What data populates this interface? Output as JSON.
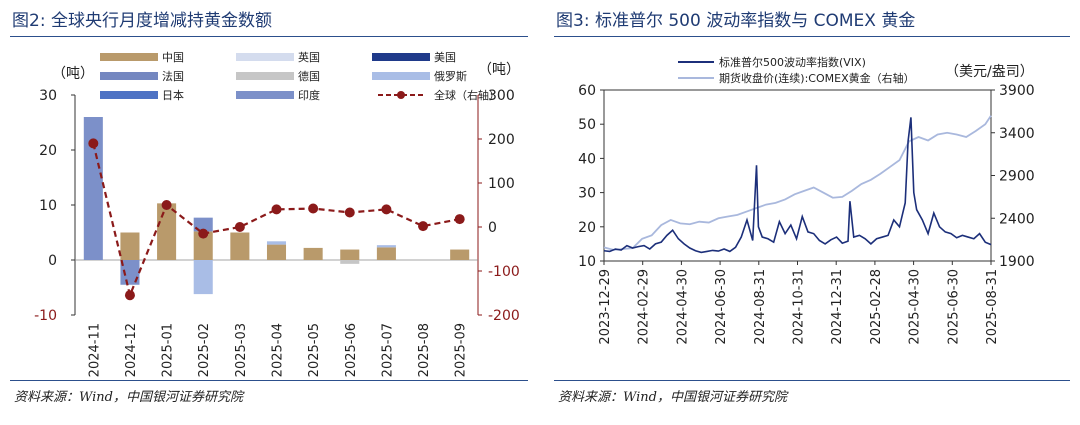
{
  "figures": [
    {
      "title": "图2: 全球央行月度增减持黄金数额",
      "source": "资料来源：Wind，中国银河证券研究院"
    },
    {
      "title": "图3: 标准普尔 500 波动率指数与 COMEX 黄金",
      "source": "资料来源：Wind，中国银河证券研究院"
    }
  ],
  "chart_data": [
    {
      "type": "bar",
      "title": "全球央行月度增减持黄金数额",
      "ylabel": "（吨）",
      "y2label": "（吨）",
      "ylim": [
        -10,
        30
      ],
      "y2lim": [
        -200,
        300
      ],
      "yticks": [
        "30",
        "20",
        "10",
        "0",
        "-10"
      ],
      "y2ticks": [
        "300",
        "200",
        "100",
        "0",
        "-100",
        "-200"
      ],
      "categories": [
        "2024-11",
        "2024-12",
        "2025-01",
        "2025-02",
        "2025-03",
        "2025-04",
        "2025-05",
        "2025-06",
        "2025-07",
        "2025-08",
        "2025-09"
      ],
      "series": [
        {
          "name": "中国",
          "color": "#b99a6b",
          "values": [
            0,
            5,
            10.3,
            5.2,
            5.0,
            2.8,
            2.2,
            1.9,
            2.3,
            0,
            1.9
          ]
        },
        {
          "name": "英国",
          "color": "#d4dcee",
          "values": [
            0,
            0,
            0,
            0,
            0,
            0,
            0,
            0,
            0,
            0,
            0
          ]
        },
        {
          "name": "美国",
          "color": "#1f3a8a",
          "values": [
            0,
            0,
            0,
            0,
            0,
            0,
            0,
            0,
            0,
            0,
            0
          ]
        },
        {
          "name": "法国",
          "color": "#7487c0",
          "values": [
            0,
            0,
            0,
            0,
            0,
            0,
            0,
            0,
            0,
            0,
            0
          ]
        },
        {
          "name": "德国",
          "color": "#c6c6c6",
          "values": [
            0,
            0,
            0,
            0,
            0,
            0,
            0,
            -0.7,
            0,
            0,
            0
          ]
        },
        {
          "name": "俄罗斯",
          "color": "#a9bde6",
          "values": [
            0,
            0,
            0,
            -6.2,
            0,
            0.6,
            0,
            0,
            0.4,
            0,
            0
          ]
        },
        {
          "name": "日本",
          "color": "#4d72c4",
          "values": [
            0,
            0,
            0,
            0,
            0,
            0,
            0,
            0,
            0,
            0,
            0
          ]
        },
        {
          "name": "印度",
          "color": "#7c90c9",
          "values": [
            26,
            -4.5,
            0,
            2.5,
            0,
            0,
            0,
            0,
            0,
            0,
            0
          ]
        },
        {
          "name": "全球（右轴）",
          "color": "#8b1a1a",
          "type": "line",
          "axis": "right",
          "values": [
            190,
            -155,
            50,
            -15,
            0,
            40,
            42,
            33,
            40,
            2,
            18
          ]
        }
      ]
    },
    {
      "type": "line",
      "title": "标准普尔 500 波动率指数与 COMEX 黄金",
      "y2label": "（美元/盎司）",
      "ylim": [
        10,
        60
      ],
      "y2lim": [
        1900,
        3900
      ],
      "yticks": [
        "60",
        "50",
        "40",
        "30",
        "20",
        "10"
      ],
      "y2ticks": [
        "3900",
        "3400",
        "2900",
        "2400",
        "1900"
      ],
      "xticks": [
        "2023-12-29",
        "2024-02-29",
        "2024-04-30",
        "2024-06-30",
        "2024-08-31",
        "2024-10-31",
        "2024-12-31",
        "2025-02-28",
        "2025-04-30",
        "2025-06-30",
        "2025-08-31"
      ],
      "xrange": [
        0,
        20.3
      ],
      "series": [
        {
          "name": "标准普尔500波动率指数(VIX)",
          "color": "#1c2f7a",
          "axis": "left",
          "x": [
            0,
            0.3,
            0.6,
            0.9,
            1.2,
            1.5,
            1.8,
            2.1,
            2.4,
            2.7,
            3.0,
            3.3,
            3.6,
            3.9,
            4.2,
            4.5,
            4.8,
            5.1,
            5.4,
            5.7,
            6.0,
            6.3,
            6.6,
            6.9,
            7.2,
            7.5,
            7.8,
            8.0,
            8.1,
            8.3,
            8.6,
            8.9,
            9.2,
            9.5,
            9.8,
            10.1,
            10.4,
            10.7,
            11.0,
            11.3,
            11.6,
            11.9,
            12.2,
            12.5,
            12.8,
            12.9,
            13.1,
            13.4,
            13.7,
            14.0,
            14.3,
            14.6,
            14.9,
            15.2,
            15.5,
            15.8,
            15.95,
            16.1,
            16.25,
            16.4,
            16.7,
            17.0,
            17.3,
            17.6,
            17.9,
            18.2,
            18.5,
            18.8,
            19.1,
            19.4,
            19.7,
            20.0,
            20.3
          ],
          "y": [
            13,
            12.8,
            13.5,
            13.2,
            14.5,
            13.8,
            14.2,
            14.5,
            13.5,
            15,
            15.5,
            17.5,
            19,
            16.5,
            15,
            13.8,
            13,
            12.5,
            12.8,
            13.1,
            12.9,
            13.5,
            12.8,
            14,
            17,
            22,
            16,
            38,
            20,
            17,
            16.5,
            15.5,
            21.5,
            18,
            20.5,
            16.5,
            23,
            18.5,
            18,
            16,
            15,
            16.2,
            17,
            15.2,
            15.8,
            27.5,
            17,
            17.5,
            16.5,
            15,
            16.5,
            17,
            17.5,
            22,
            20,
            27,
            45,
            52,
            30,
            25,
            22,
            18,
            24,
            20,
            18.5,
            18,
            16.8,
            17.5,
            17,
            16.5,
            18,
            15.5,
            14.8
          ]
        },
        {
          "name": "期货收盘价(连续):COMEX黄金（右轴）",
          "color": "#a9b8dd",
          "axis": "right",
          "x": [
            0,
            0.5,
            1,
            1.5,
            2,
            2.5,
            3,
            3.5,
            4,
            4.5,
            5,
            5.5,
            6,
            6.5,
            7,
            7.5,
            8,
            8.5,
            9,
            9.5,
            10,
            10.5,
            11,
            11.5,
            12,
            12.5,
            13,
            13.5,
            14,
            14.5,
            15,
            15.5,
            16,
            16.5,
            17,
            17.5,
            18,
            18.5,
            19,
            19.5,
            20,
            20.3
          ],
          "y": [
            2060,
            2030,
            2040,
            2050,
            2160,
            2200,
            2320,
            2380,
            2340,
            2330,
            2360,
            2350,
            2400,
            2420,
            2440,
            2480,
            2520,
            2560,
            2580,
            2620,
            2680,
            2720,
            2760,
            2700,
            2640,
            2650,
            2720,
            2800,
            2850,
            2920,
            3000,
            3080,
            3300,
            3350,
            3310,
            3380,
            3400,
            3380,
            3350,
            3420,
            3500,
            3600
          ]
        }
      ]
    }
  ]
}
